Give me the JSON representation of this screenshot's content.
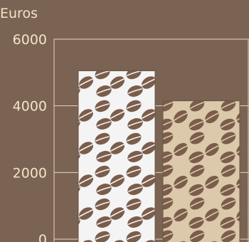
{
  "chart_data": {
    "type": "bar",
    "ylabel": "Euros",
    "yticks": [
      0,
      2000,
      4000,
      6000
    ],
    "ylim": [
      0,
      6000
    ],
    "grid": true,
    "categories": [
      "",
      ""
    ],
    "series": [
      {
        "values": [
          5050,
          4150
        ]
      }
    ],
    "colors": {
      "background": "#7a6352",
      "text": "#f3e3c8",
      "grid": "#e9d6b4",
      "bean": "#7b5d4b",
      "bar_fills": [
        "#f4f4f4",
        "#dcc8aa"
      ]
    }
  }
}
